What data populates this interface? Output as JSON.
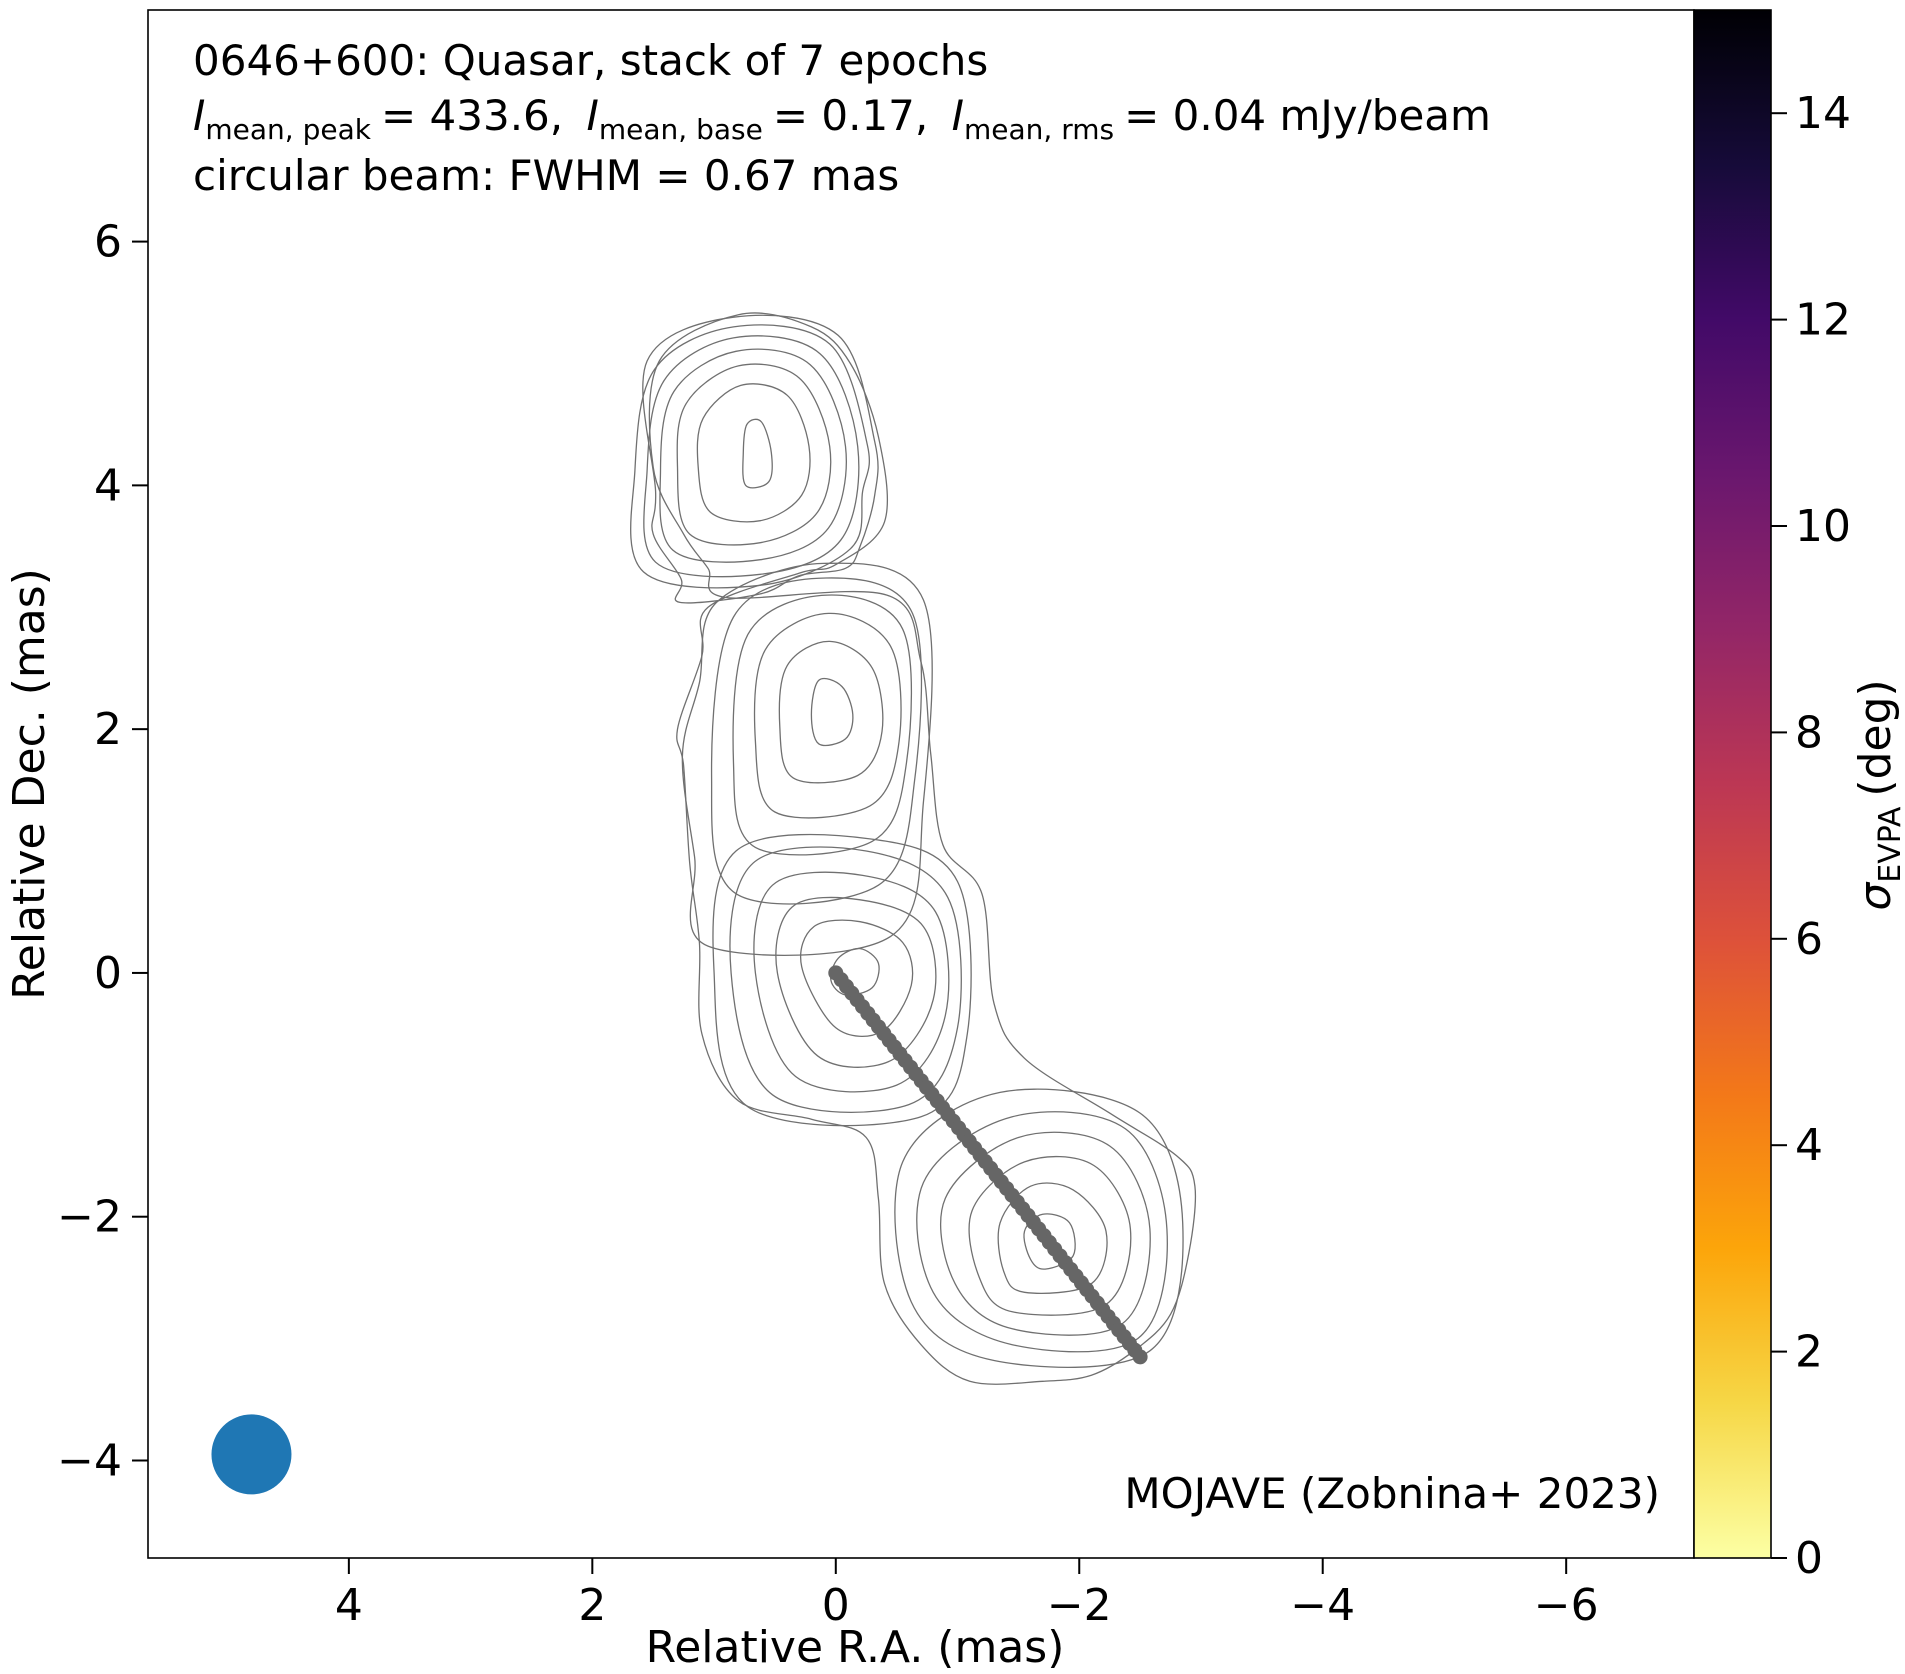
{
  "chart_data": {
    "type": "scatter",
    "title_lines": {
      "line1": "0646+600: Quasar, stack of 7 epochs",
      "line2": {
        "peak_symbol": "I",
        "peak_sub": "mean, peak",
        "peak_value": "= 433.6,",
        "base_symbol": "I",
        "base_sub": "mean, base",
        "base_value": "= 0.17,",
        "rms_symbol": "I",
        "rms_sub": "mean, rms",
        "rms_value": "= 0.04 mJy/beam"
      },
      "line3": "circular beam: FWHM = 0.67 mas"
    },
    "credit": "MOJAVE (Zobnina+ 2023)",
    "xlabel": "Relative R.A. (mas)",
    "ylabel": "Relative Dec. (mas)",
    "xlim": [
      5.65,
      -7.05
    ],
    "ylim": [
      -4.8,
      7.9
    ],
    "x_ticks": [
      4,
      2,
      0,
      -2,
      -4,
      -6
    ],
    "y_ticks": [
      6,
      4,
      2,
      0,
      -2,
      -4
    ],
    "x_tick_labels": [
      "4",
      "2",
      "0",
      "−2",
      "−4",
      "−6"
    ],
    "y_tick_labels": [
      "6",
      "4",
      "2",
      "0",
      "−2",
      "−4"
    ],
    "colorbar": {
      "label_symbol": "σ",
      "label_sub": "EVPA",
      "label_unit": "(deg)",
      "range": [
        0,
        15
      ],
      "ticks": [
        0,
        2,
        4,
        6,
        8,
        10,
        12,
        14
      ],
      "tick_labels": [
        "0",
        "2",
        "4",
        "6",
        "8",
        "10",
        "12",
        "14"
      ],
      "colormap": [
        "#fcffa4",
        "#f6d746",
        "#fca50a",
        "#f37819",
        "#dd513a",
        "#bc3754",
        "#932667",
        "#6a176e",
        "#420a68",
        "#160b39",
        "#000004"
      ]
    },
    "beam": {
      "x": 4.8,
      "y": -3.95,
      "fwhm_mas": 0.67,
      "color": "#1f77b4"
    },
    "ridgeline": {
      "color": "#666666",
      "start": [
        0.0,
        0.0
      ],
      "end": [
        -2.5,
        -3.15
      ],
      "n_points": 58
    },
    "contour_color": "#707070",
    "contours": {
      "components": [
        {
          "x": 0.64,
          "y": 4.25,
          "size": [
            0.45,
            0.55
          ]
        },
        {
          "x": 0.08,
          "y": 2.12,
          "size": [
            0.55,
            0.65
          ]
        },
        {
          "x": -0.15,
          "y": 0.0,
          "size": [
            0.6,
            0.42
          ]
        },
        {
          "x": -1.75,
          "y": -2.2,
          "size": [
            0.8,
            0.58
          ]
        }
      ],
      "levels": [
        [
          [
            0.74,
            4.0
          ],
          [
            0.55,
            4.03
          ],
          [
            0.53,
            4.27
          ],
          [
            0.61,
            4.52
          ],
          [
            0.73,
            4.5
          ],
          [
            0.76,
            4.27
          ]
        ],
        [
          [
            1.03,
            3.78
          ],
          [
            0.62,
            3.71
          ],
          [
            0.28,
            3.92
          ],
          [
            0.22,
            4.32
          ],
          [
            0.4,
            4.74
          ],
          [
            0.78,
            4.82
          ],
          [
            1.09,
            4.55
          ],
          [
            1.13,
            4.15
          ]
        ],
        [
          [
            1.2,
            3.6
          ],
          [
            0.62,
            3.53
          ],
          [
            0.15,
            3.78
          ],
          [
            0.05,
            4.32
          ],
          [
            0.3,
            4.88
          ],
          [
            0.8,
            4.98
          ],
          [
            1.23,
            4.67
          ],
          [
            1.3,
            4.15
          ]
        ],
        [
          [
            1.34,
            3.47
          ],
          [
            0.62,
            3.39
          ],
          [
            0.06,
            3.65
          ],
          [
            -0.08,
            4.32
          ],
          [
            0.21,
            4.99
          ],
          [
            0.82,
            5.1
          ],
          [
            1.33,
            4.77
          ],
          [
            1.44,
            4.12
          ]
        ],
        [
          [
            1.48,
            3.37
          ],
          [
            0.62,
            3.27
          ],
          [
            -0.04,
            3.55
          ],
          [
            -0.18,
            4.32
          ],
          [
            0.13,
            5.08
          ],
          [
            0.84,
            5.21
          ],
          [
            1.41,
            4.86
          ],
          [
            1.55,
            4.12
          ]
        ],
        [
          [
            1.58,
            3.29
          ],
          [
            0.62,
            3.18
          ],
          [
            -0.12,
            3.48
          ],
          [
            -0.22,
            3.95
          ],
          [
            -0.26,
            4.33
          ],
          [
            0.05,
            5.16
          ],
          [
            0.84,
            5.3
          ],
          [
            1.49,
            4.95
          ],
          [
            1.65,
            4.12
          ]
        ],
        [
          [
            1.28,
            3.04
          ],
          [
            0.62,
            3.11
          ],
          [
            0.3,
            3.26
          ],
          [
            -0.08,
            3.32
          ],
          [
            -0.2,
            3.5
          ],
          [
            -0.32,
            3.92
          ],
          [
            -0.32,
            4.36
          ],
          [
            -0.02,
            5.23
          ],
          [
            0.84,
            5.38
          ],
          [
            1.55,
            5.02
          ],
          [
            1.48,
            3.95
          ],
          [
            1.5,
            3.6
          ],
          [
            1.27,
            3.23
          ]
        ],
        [
          [
            0.14,
            1.88
          ],
          [
            -0.08,
            1.92
          ],
          [
            -0.14,
            2.12
          ],
          [
            -0.05,
            2.35
          ],
          [
            0.14,
            2.4
          ],
          [
            0.2,
            2.12
          ]
        ],
        [
          [
            0.35,
            1.6
          ],
          [
            -0.18,
            1.62
          ],
          [
            -0.38,
            1.98
          ],
          [
            -0.3,
            2.5
          ],
          [
            0.05,
            2.72
          ],
          [
            0.4,
            2.52
          ],
          [
            0.46,
            2.02
          ]
        ],
        [
          [
            0.5,
            1.32
          ],
          [
            -0.28,
            1.37
          ],
          [
            -0.52,
            1.9
          ],
          [
            -0.45,
            2.68
          ],
          [
            0.06,
            2.95
          ],
          [
            0.58,
            2.65
          ],
          [
            0.66,
            1.9
          ]
        ],
        [
          [
            0.66,
            1.03
          ],
          [
            -0.3,
            1.08
          ],
          [
            -0.58,
            1.72
          ],
          [
            -0.55,
            2.82
          ],
          [
            0.07,
            3.1
          ],
          [
            0.72,
            2.78
          ],
          [
            0.84,
            1.72
          ]
        ],
        [
          [
            0.82,
            0.65
          ],
          [
            -0.35,
            0.72
          ],
          [
            -0.65,
            1.6
          ],
          [
            -0.63,
            2.95
          ],
          [
            0.08,
            3.24
          ],
          [
            0.84,
            2.92
          ],
          [
            1.02,
            1.6
          ]
        ],
        [
          [
            1.05,
            0.22
          ],
          [
            -0.45,
            0.3
          ],
          [
            -0.72,
            1.4
          ],
          [
            -0.72,
            3.06
          ],
          [
            0.1,
            3.36
          ],
          [
            0.98,
            3.04
          ],
          [
            1.12,
            2.38
          ],
          [
            1.26,
            1.78
          ],
          [
            1.16,
            0.95
          ]
        ],
        [
          [
            -0.08,
            -0.18
          ],
          [
            -0.3,
            -0.12
          ],
          [
            -0.35,
            0.08
          ],
          [
            -0.2,
            0.2
          ],
          [
            -0.02,
            0.12
          ],
          [
            0.04,
            -0.06
          ]
        ],
        [
          [
            0.0,
            -0.45
          ],
          [
            -0.38,
            -0.48
          ],
          [
            -0.62,
            -0.1
          ],
          [
            -0.55,
            0.25
          ],
          [
            -0.2,
            0.42
          ],
          [
            0.18,
            0.38
          ],
          [
            0.28,
            0.05
          ]
        ],
        [
          [
            0.15,
            -0.68
          ],
          [
            -0.45,
            -0.72
          ],
          [
            -0.8,
            -0.22
          ],
          [
            -0.72,
            0.38
          ],
          [
            -0.2,
            0.6
          ],
          [
            0.36,
            0.54
          ],
          [
            0.48,
            0.0
          ]
        ],
        [
          [
            0.33,
            -0.85
          ],
          [
            -0.5,
            -0.92
          ],
          [
            -0.9,
            -0.35
          ],
          [
            -0.82,
            0.5
          ],
          [
            -0.22,
            0.8
          ],
          [
            0.52,
            0.72
          ],
          [
            0.66,
            0.0
          ]
        ],
        [
          [
            0.52,
            -1.0
          ],
          [
            -0.6,
            -1.08
          ],
          [
            -1.0,
            -0.45
          ],
          [
            -0.92,
            0.62
          ],
          [
            -0.25,
            1.0
          ],
          [
            0.68,
            0.9
          ],
          [
            0.86,
            0.0
          ]
        ],
        [
          [
            0.72,
            -1.1
          ],
          [
            -0.7,
            -1.18
          ],
          [
            -1.08,
            -0.5
          ],
          [
            -1.0,
            0.75
          ],
          [
            -0.28,
            1.1
          ],
          [
            0.82,
            1.0
          ],
          [
            1.0,
            0.0
          ]
        ],
        [
          [
            -1.72,
            -2.43
          ],
          [
            -1.95,
            -2.32
          ],
          [
            -1.92,
            -2.05
          ],
          [
            -1.7,
            -1.98
          ],
          [
            -1.55,
            -2.12
          ],
          [
            -1.6,
            -2.35
          ]
        ],
        [
          [
            -1.55,
            -2.62
          ],
          [
            -2.1,
            -2.55
          ],
          [
            -2.22,
            -2.12
          ],
          [
            -1.95,
            -1.78
          ],
          [
            -1.6,
            -1.75
          ],
          [
            -1.35,
            -2.05
          ],
          [
            -1.38,
            -2.45
          ]
        ],
        [
          [
            -1.45,
            -2.78
          ],
          [
            -2.22,
            -2.72
          ],
          [
            -2.42,
            -2.1
          ],
          [
            -2.12,
            -1.58
          ],
          [
            -1.55,
            -1.55
          ],
          [
            -1.12,
            -1.95
          ],
          [
            -1.18,
            -2.5
          ]
        ],
        [
          [
            -1.45,
            -2.92
          ],
          [
            -2.35,
            -2.88
          ],
          [
            -2.58,
            -2.1
          ],
          [
            -2.25,
            -1.42
          ],
          [
            -1.5,
            -1.35
          ],
          [
            -0.9,
            -1.85
          ],
          [
            -0.98,
            -2.55
          ]
        ],
        [
          [
            -1.45,
            -3.05
          ],
          [
            -2.48,
            -3.0
          ],
          [
            -2.72,
            -2.1
          ],
          [
            -2.38,
            -1.28
          ],
          [
            -1.45,
            -1.18
          ],
          [
            -0.72,
            -1.72
          ],
          [
            -0.8,
            -2.62
          ]
        ],
        [
          [
            -1.3,
            -3.18
          ],
          [
            -2.58,
            -3.1
          ],
          [
            -2.85,
            -2.05
          ],
          [
            -2.5,
            -1.15
          ],
          [
            -1.35,
            -0.98
          ],
          [
            -0.55,
            -1.55
          ],
          [
            -0.62,
            -2.7
          ]
        ]
      ],
      "outer": [
        [
          -2.1,
          -3.3
        ],
        [
          -1.7,
          -3.35
        ],
        [
          -1.1,
          -3.35
        ],
        [
          -0.7,
          -3.05
        ],
        [
          -0.4,
          -2.55
        ],
        [
          -0.35,
          -1.85
        ],
        [
          -0.25,
          -1.35
        ],
        [
          0.2,
          -1.2
        ],
        [
          0.8,
          -1.05
        ],
        [
          1.1,
          -0.5
        ],
        [
          1.12,
          0.25
        ],
        [
          1.2,
          0.9
        ],
        [
          1.25,
          1.7
        ],
        [
          1.3,
          2.0
        ],
        [
          1.1,
          2.6
        ],
        [
          1.05,
          3.0
        ],
        [
          0.3,
          3.28
        ],
        [
          0.0,
          3.35
        ],
        [
          -0.4,
          3.7
        ],
        [
          -0.35,
          4.4
        ],
        [
          -0.12,
          5.0
        ],
        [
          0.2,
          5.3
        ],
        [
          0.8,
          5.4
        ],
        [
          1.45,
          5.02
        ],
        [
          1.5,
          4.15
        ],
        [
          1.25,
          3.6
        ],
        [
          1.05,
          3.32
        ],
        [
          0.9,
          3.08
        ],
        [
          -0.42,
          3.1
        ],
        [
          -0.7,
          2.55
        ],
        [
          -0.78,
          1.8
        ],
        [
          -0.88,
          1.05
        ],
        [
          -1.2,
          0.65
        ],
        [
          -1.3,
          -0.25
        ],
        [
          -1.55,
          -0.7
        ],
        [
          -2.25,
          -1.15
        ],
        [
          -2.8,
          -1.5
        ],
        [
          -2.95,
          -1.75
        ],
        [
          -2.9,
          -2.3
        ],
        [
          -2.75,
          -2.8
        ],
        [
          -2.45,
          -3.1
        ]
      ]
    }
  }
}
